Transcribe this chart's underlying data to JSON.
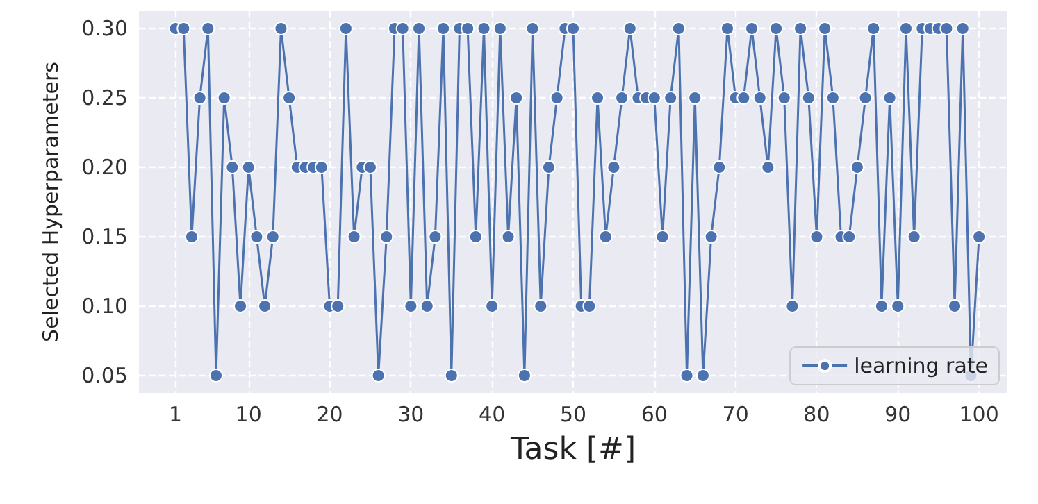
{
  "chart_data": {
    "type": "line",
    "xlabel": "Task [#]",
    "ylabel": "Selected Hyperparameters",
    "x": [
      1,
      2,
      3,
      4,
      5,
      6,
      7,
      8,
      9,
      10,
      11,
      12,
      13,
      14,
      15,
      16,
      17,
      18,
      19,
      20,
      21,
      22,
      23,
      24,
      25,
      26,
      27,
      28,
      29,
      30,
      31,
      32,
      33,
      34,
      35,
      36,
      37,
      38,
      39,
      40,
      41,
      42,
      43,
      44,
      45,
      46,
      47,
      48,
      49,
      50,
      51,
      52,
      53,
      54,
      55,
      56,
      57,
      58,
      59,
      60,
      61,
      62,
      63,
      64,
      65,
      66,
      67,
      68,
      69,
      70,
      71,
      72,
      73,
      74,
      75,
      76,
      77,
      78,
      79,
      80,
      81,
      82,
      83,
      84,
      85,
      86,
      87,
      88,
      89,
      90,
      91,
      92,
      93,
      94,
      95,
      96,
      97,
      98,
      99,
      100
    ],
    "series": [
      {
        "name": "learning rate",
        "color": "#4c72b0",
        "values": [
          0.3,
          0.3,
          0.15,
          0.25,
          0.3,
          0.05,
          0.25,
          0.2,
          0.1,
          0.2,
          0.15,
          0.1,
          0.15,
          0.3,
          0.25,
          0.2,
          0.2,
          0.2,
          0.2,
          0.1,
          0.1,
          0.3,
          0.15,
          0.2,
          0.2,
          0.05,
          0.15,
          0.3,
          0.3,
          0.1,
          0.3,
          0.1,
          0.15,
          0.3,
          0.05,
          0.3,
          0.3,
          0.15,
          0.3,
          0.1,
          0.3,
          0.15,
          0.25,
          0.05,
          0.3,
          0.1,
          0.2,
          0.25,
          0.3,
          0.3,
          0.1,
          0.1,
          0.25,
          0.15,
          0.2,
          0.25,
          0.3,
          0.25,
          0.25,
          0.25,
          0.15,
          0.25,
          0.3,
          0.05,
          0.25,
          0.05,
          0.15,
          0.2,
          0.3,
          0.25,
          0.25,
          0.3,
          0.25,
          0.2,
          0.3,
          0.25,
          0.1,
          0.3,
          0.25,
          0.15,
          0.3,
          0.25,
          0.15,
          0.15,
          0.2,
          0.25,
          0.3,
          0.1,
          0.25,
          0.1,
          0.3,
          0.15,
          0.3,
          0.3,
          0.3,
          0.3,
          0.1,
          0.3,
          0.05,
          0.15
        ]
      }
    ],
    "xlim": [
      -3.5,
      103.5
    ],
    "xticks": [
      1,
      10,
      20,
      30,
      40,
      50,
      60,
      70,
      80,
      90,
      100
    ],
    "ylim": [
      0.0375,
      0.3125
    ],
    "yticks": [
      {
        "value": 0.05,
        "label": "0.05"
      },
      {
        "value": 0.1,
        "label": "0.10"
      },
      {
        "value": 0.15,
        "label": "0.15"
      },
      {
        "value": 0.2,
        "label": "0.20"
      },
      {
        "value": 0.25,
        "label": "0.25"
      },
      {
        "value": 0.3,
        "label": "0.30"
      }
    ],
    "grid": true,
    "legend": "bottom right",
    "marker": "circle",
    "line_style": "solid"
  }
}
